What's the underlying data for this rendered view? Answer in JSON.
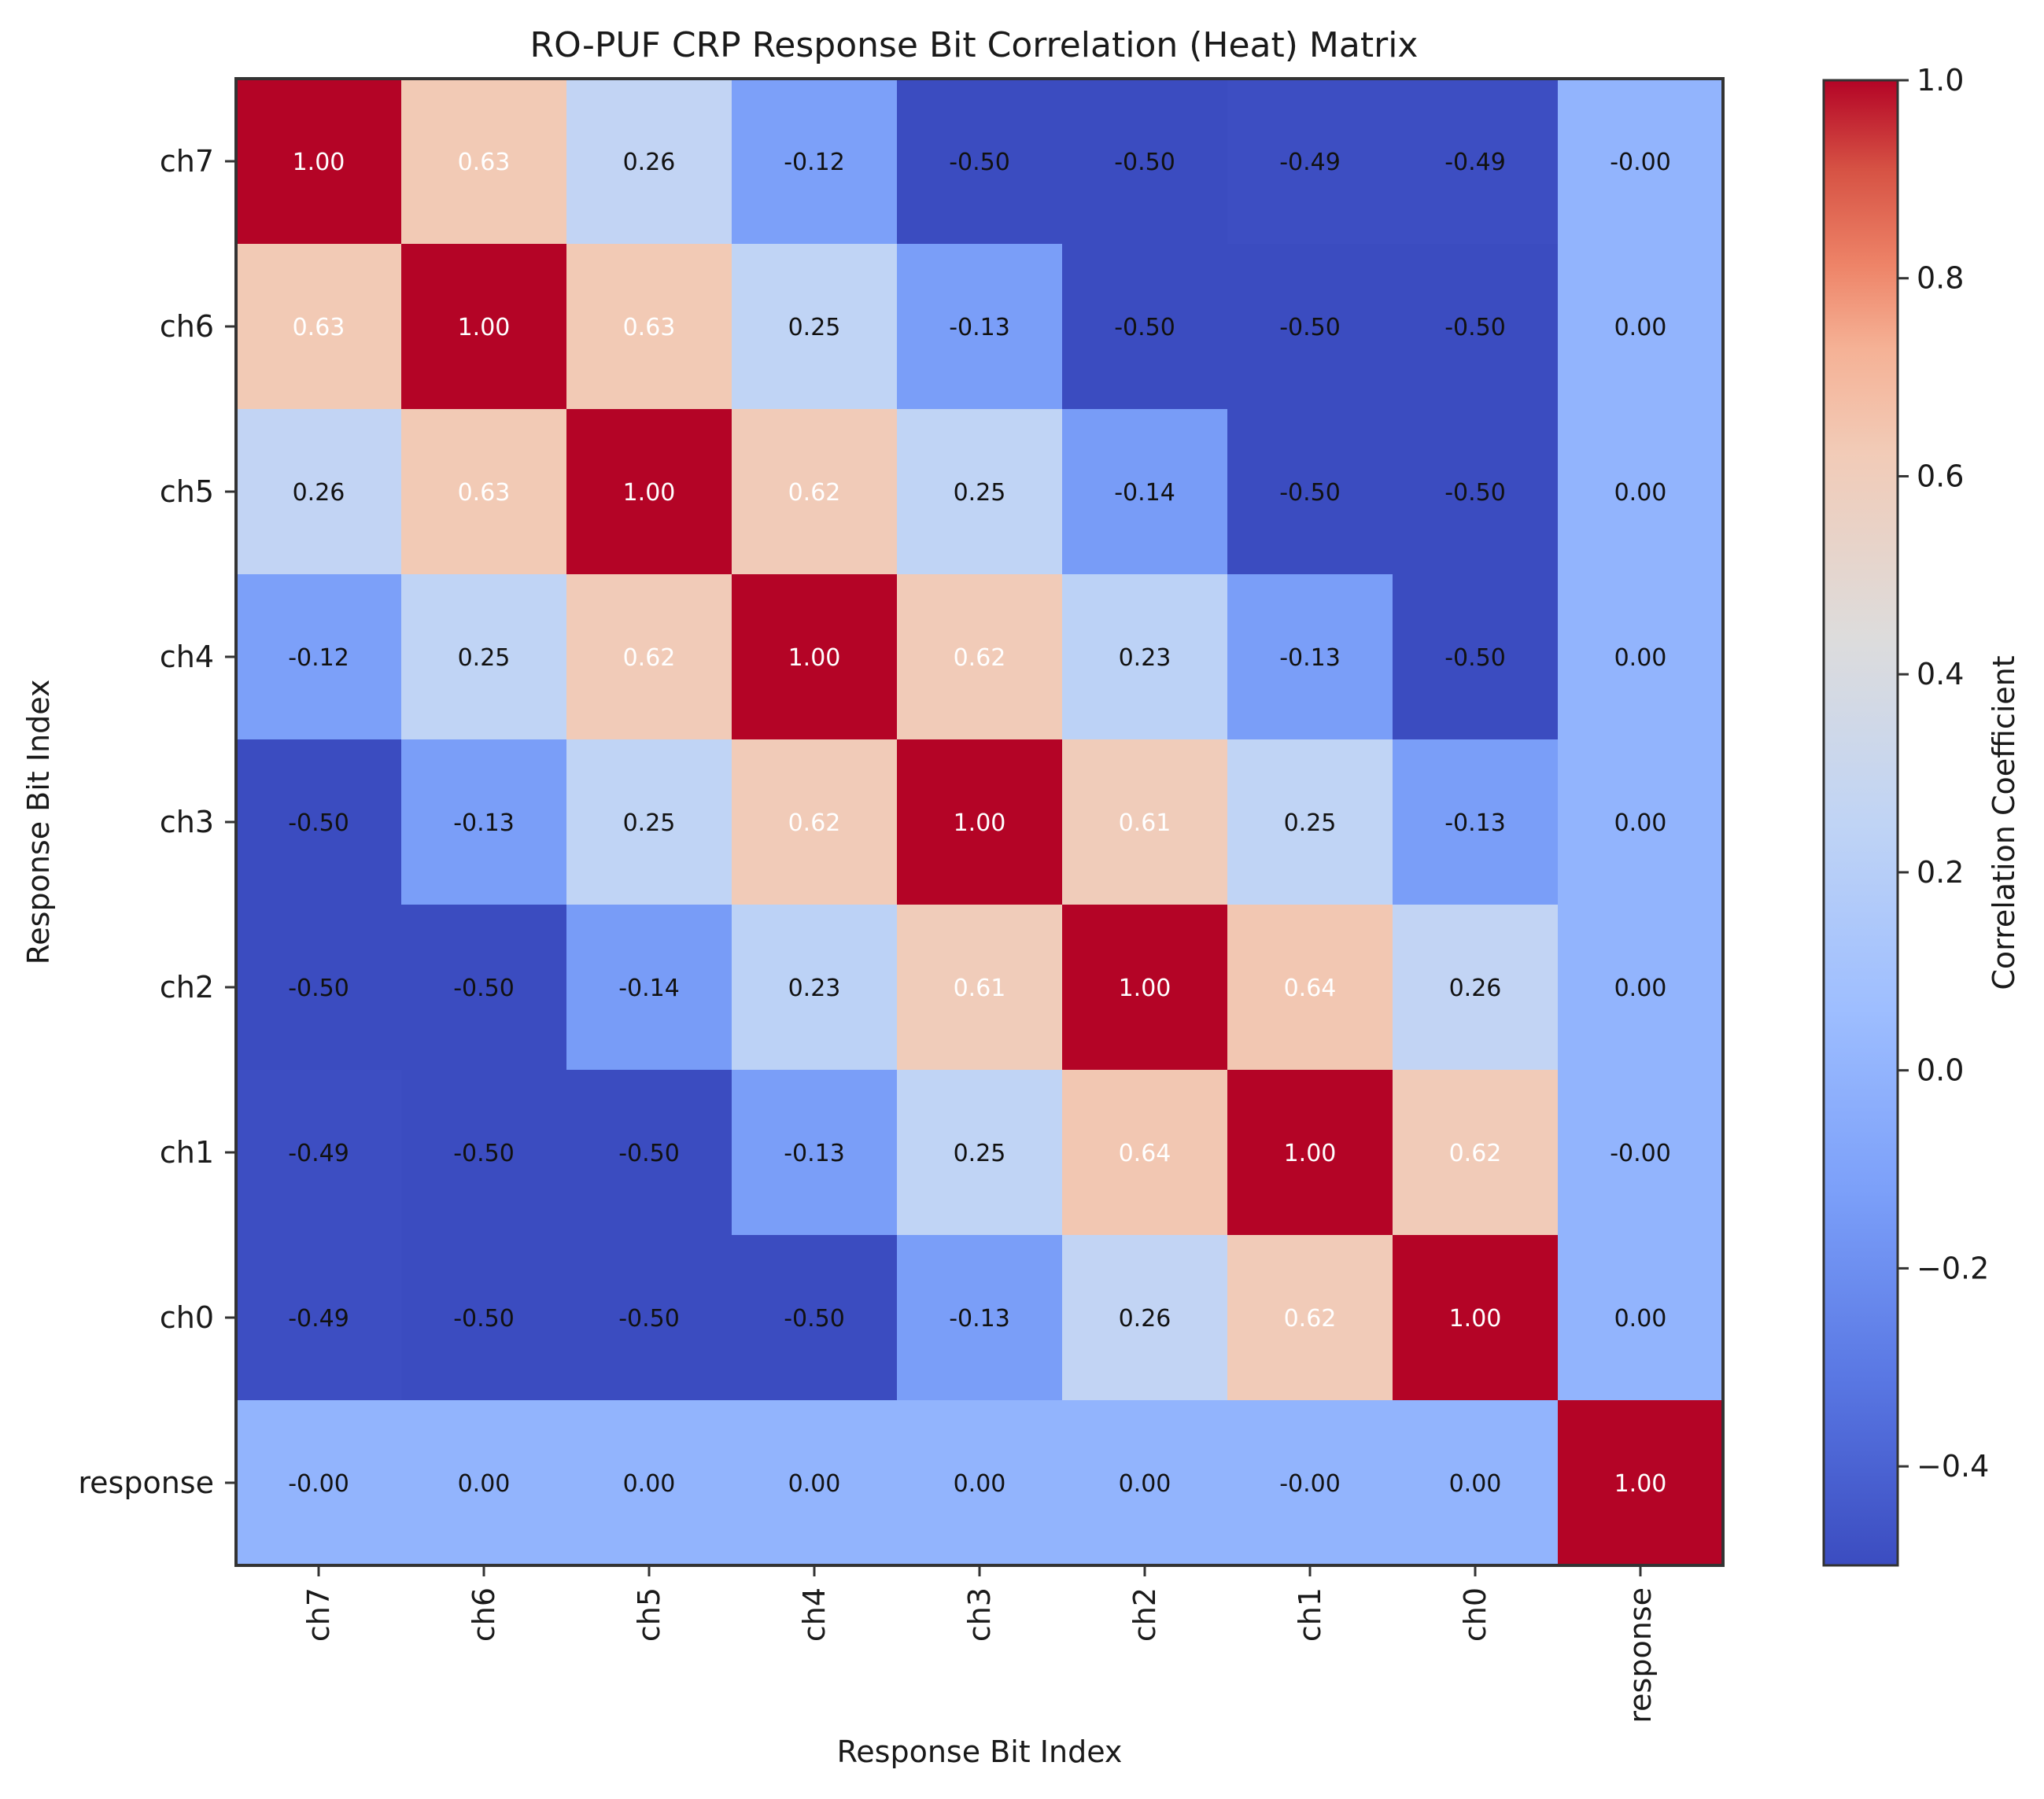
{
  "chart_data": {
    "type": "heatmap",
    "title": "RO-PUF CRP Response Bit Correlation (Heat) Matrix",
    "xlabel": "Response Bit Index",
    "ylabel": "Response Bit Index",
    "x_categories": [
      "ch7",
      "ch6",
      "ch5",
      "ch4",
      "ch3",
      "ch2",
      "ch1",
      "ch0",
      "response"
    ],
    "y_categories": [
      "ch7",
      "ch6",
      "ch5",
      "ch4",
      "ch3",
      "ch2",
      "ch1",
      "ch0",
      "response"
    ],
    "values": [
      [
        1.0,
        0.63,
        0.26,
        -0.12,
        -0.5,
        -0.5,
        -0.49,
        -0.49,
        -0.001
      ],
      [
        0.63,
        1.0,
        0.63,
        0.25,
        -0.13,
        -0.5,
        -0.5,
        -0.5,
        0.0
      ],
      [
        0.26,
        0.63,
        1.0,
        0.62,
        0.25,
        -0.14,
        -0.5,
        -0.5,
        0.0
      ],
      [
        -0.12,
        0.25,
        0.62,
        1.0,
        0.62,
        0.23,
        -0.13,
        -0.5,
        0.0
      ],
      [
        -0.5,
        -0.13,
        0.25,
        0.62,
        1.0,
        0.61,
        0.25,
        -0.13,
        0.0
      ],
      [
        -0.5,
        -0.5,
        -0.14,
        0.23,
        0.61,
        1.0,
        0.64,
        0.26,
        0.0
      ],
      [
        -0.49,
        -0.5,
        -0.5,
        -0.13,
        0.25,
        0.64,
        1.0,
        0.62,
        -0.001
      ],
      [
        -0.49,
        -0.5,
        -0.5,
        -0.5,
        -0.13,
        0.26,
        0.62,
        1.0,
        0.0
      ],
      [
        -0.001,
        0.0,
        0.0,
        0.0,
        0.0,
        0.0,
        -0.001,
        0.0,
        1.0
      ]
    ],
    "annotations": [
      [
        "1.00",
        "0.63",
        "0.26",
        "-0.12",
        "-0.50",
        "-0.50",
        "-0.49",
        "-0.49",
        "-0.00"
      ],
      [
        "0.63",
        "1.00",
        "0.63",
        "0.25",
        "-0.13",
        "-0.50",
        "-0.50",
        "-0.50",
        "0.00"
      ],
      [
        "0.26",
        "0.63",
        "1.00",
        "0.62",
        "0.25",
        "-0.14",
        "-0.50",
        "-0.50",
        "0.00"
      ],
      [
        "-0.12",
        "0.25",
        "0.62",
        "1.00",
        "0.62",
        "0.23",
        "-0.13",
        "-0.50",
        "0.00"
      ],
      [
        "-0.50",
        "-0.13",
        "0.25",
        "0.62",
        "1.00",
        "0.61",
        "0.25",
        "-0.13",
        "0.00"
      ],
      [
        "-0.50",
        "-0.50",
        "-0.14",
        "0.23",
        "0.61",
        "1.00",
        "0.64",
        "0.26",
        "0.00"
      ],
      [
        "-0.49",
        "-0.50",
        "-0.50",
        "-0.13",
        "0.25",
        "0.64",
        "1.00",
        "0.62",
        "-0.00"
      ],
      [
        "-0.49",
        "-0.50",
        "-0.50",
        "-0.50",
        "-0.13",
        "0.26",
        "0.62",
        "1.00",
        "0.00"
      ],
      [
        "-0.00",
        "0.00",
        "0.00",
        "0.00",
        "0.00",
        "0.00",
        "-0.00",
        "0.00",
        "1.00"
      ]
    ],
    "colormap": "coolwarm",
    "vmin": -0.5,
    "vmax": 1.0,
    "colorbar": {
      "label": "Correlation Coefficient",
      "ticks": [
        -0.4,
        -0.2,
        0.0,
        0.2,
        0.4,
        0.6,
        0.8,
        1.0
      ],
      "tick_labels": [
        "−0.4",
        "−0.2",
        "0.0",
        "0.2",
        "0.4",
        "0.6",
        "0.8",
        "1.0"
      ]
    },
    "grid": false
  }
}
